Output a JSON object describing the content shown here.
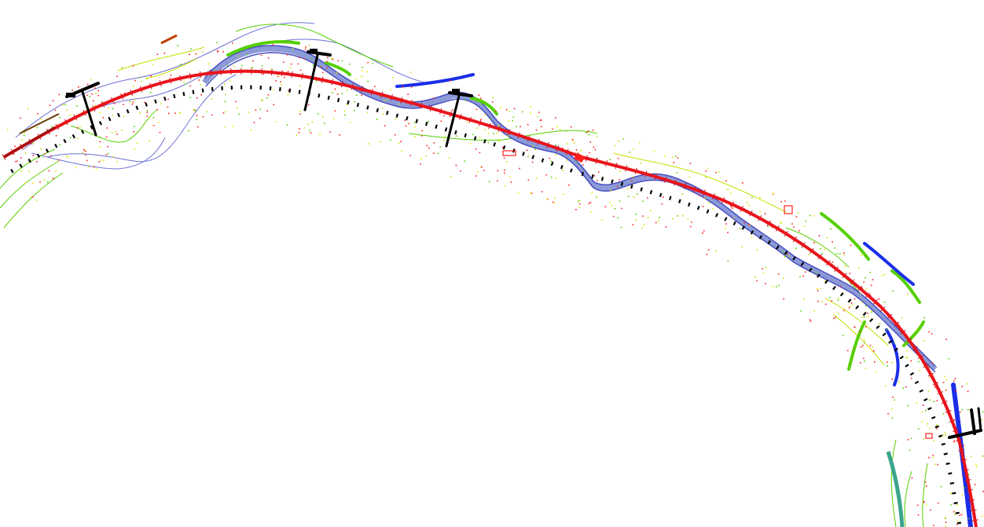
{
  "drawing": {
    "background": "#ffffff",
    "colors": {
      "centerline": "#e8141b",
      "river": "#6e72d6",
      "river_fill": "#8c9ad8",
      "contour_green": "#55d000",
      "contour_yellow": "#e6e600",
      "terrain_red": "#ff2020",
      "marker_black": "#000000",
      "water_blue": "#1a2ee8",
      "teal": "#3aa58c"
    },
    "layers": [
      "centerline",
      "river-channel",
      "contours",
      "terrain-points",
      "chainage-ticks",
      "section-markers",
      "water-features"
    ],
    "section_markers_count": 4
  }
}
